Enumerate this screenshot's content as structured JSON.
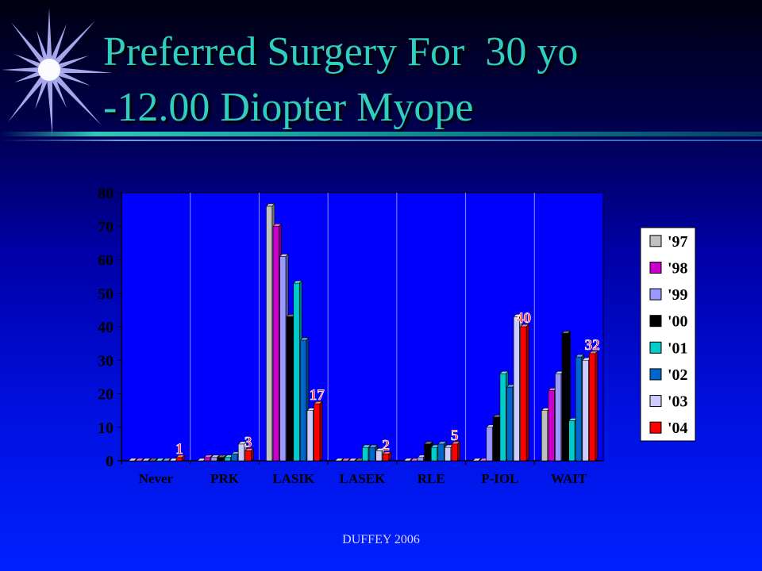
{
  "slide": {
    "title_line1": "Preferred Surgery For  30 yo",
    "title_line2": "-12.00 Diopter Myope",
    "footer": "DUFFEY 2006"
  },
  "colors": {
    "title": "#2ecfc0",
    "plot_background": "#0000ff",
    "legend_background": "#ffffff"
  },
  "chart_data": {
    "type": "bar",
    "bar_style": "3d-clustered",
    "categories": [
      "Never",
      "PRK",
      "LASIK",
      "LASEK",
      "RLE",
      "P-IOL",
      "WAIT"
    ],
    "ylim": [
      0,
      80
    ],
    "yticks": [
      0,
      10,
      20,
      30,
      40,
      50,
      60,
      70,
      80
    ],
    "grid": "vertical lines between categories",
    "legend_position": "right",
    "series": [
      {
        "name": "'97",
        "color": "#c0c0c0",
        "values": [
          0,
          0,
          76,
          0,
          0,
          0,
          15
        ]
      },
      {
        "name": "'98",
        "color": "#cc00cc",
        "values": [
          0,
          1,
          70,
          0,
          0,
          0,
          21
        ]
      },
      {
        "name": "'99",
        "color": "#9999ff",
        "values": [
          0,
          1,
          61,
          0,
          1,
          10,
          26
        ]
      },
      {
        "name": "'00",
        "color": "#000000",
        "values": [
          0,
          1,
          43,
          0,
          5,
          13,
          38
        ]
      },
      {
        "name": "'01",
        "color": "#00cccc",
        "values": [
          0,
          1,
          53,
          4,
          4,
          26,
          12
        ]
      },
      {
        "name": "'02",
        "color": "#0066cc",
        "values": [
          0,
          2,
          36,
          4,
          5,
          22,
          31
        ]
      },
      {
        "name": "'03",
        "color": "#ccccff",
        "values": [
          0,
          5,
          15,
          3,
          4,
          43,
          30
        ]
      },
      {
        "name": "'04",
        "color": "#ff0000",
        "values": [
          1,
          3,
          17,
          2,
          5,
          40,
          32
        ]
      }
    ],
    "data_labels": [
      {
        "category": "Never",
        "series": "'04",
        "text": "1"
      },
      {
        "category": "PRK",
        "series": "'04",
        "text": "3"
      },
      {
        "category": "LASIK",
        "series": "'04",
        "text": "17"
      },
      {
        "category": "LASEK",
        "series": "'04",
        "text": "2"
      },
      {
        "category": "RLE",
        "series": "'04",
        "text": "5"
      },
      {
        "category": "P-IOL",
        "series": "'04",
        "text": "40"
      },
      {
        "category": "WAIT",
        "series": "'04",
        "text": "32"
      }
    ]
  }
}
